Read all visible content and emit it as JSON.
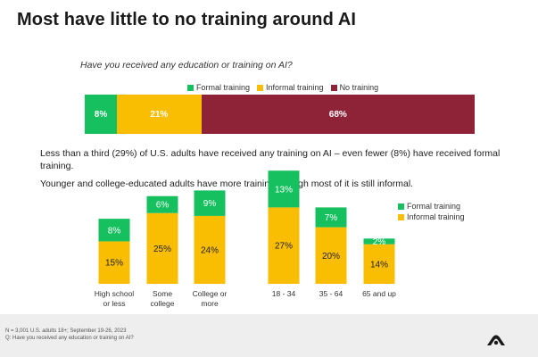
{
  "title": "Most have little to no training around AI",
  "question": "Have you received any education or training on AI?",
  "legend": {
    "formal": "Formal training",
    "informal": "Informal training",
    "none": "No training"
  },
  "colors": {
    "formal": "#16c05f",
    "informal": "#f9bd02",
    "none": "#8e2236",
    "text_light": "#ffffff",
    "text_dark": "#222222"
  },
  "paragraphs": {
    "p1": "Less than a third (29%) of U.S. adults have received any training on AI – even fewer (8%) have received formal training.",
    "p2": "Younger and college-educated adults have more training, though most of it is still informal."
  },
  "footnotes": {
    "n": "N = 3,001 U.S. adults 18+; September 19-26, 2023",
    "q": "Q: Have you received any education or training on AI?"
  },
  "chart_data": [
    {
      "type": "bar",
      "orientation": "horizontal",
      "stacked": true,
      "series": [
        {
          "name": "Formal training",
          "values": [
            8
          ],
          "label": "8%"
        },
        {
          "name": "Informal training",
          "values": [
            21
          ],
          "label": "21%"
        },
        {
          "name": "No training",
          "values": [
            68
          ],
          "label": "68%"
        }
      ],
      "legend": "top"
    },
    {
      "type": "bar",
      "stacked": true,
      "categories": [
        "High school or less",
        "Some college",
        "College or more",
        "18 - 34",
        "35 - 64",
        "65 and up"
      ],
      "category_lines": [
        [
          "High school",
          "or less"
        ],
        [
          "Some",
          "college"
        ],
        [
          "College or",
          "more"
        ],
        [
          "18 - 34"
        ],
        [
          "35 - 64"
        ],
        [
          "65 and up"
        ]
      ],
      "groups": [
        [
          0,
          1,
          2
        ],
        [
          3,
          4,
          5
        ]
      ],
      "series": [
        {
          "name": "Informal training",
          "values": [
            15,
            25,
            24,
            27,
            20,
            14
          ],
          "labels": [
            "15%",
            "25%",
            "24%",
            "27%",
            "20%",
            "14%"
          ]
        },
        {
          "name": "Formal training",
          "values": [
            8,
            6,
            9,
            13,
            7,
            2
          ],
          "labels": [
            "8%",
            "6%",
            "9%",
            "13%",
            "7%",
            "2%"
          ]
        }
      ],
      "legend": "right"
    }
  ]
}
